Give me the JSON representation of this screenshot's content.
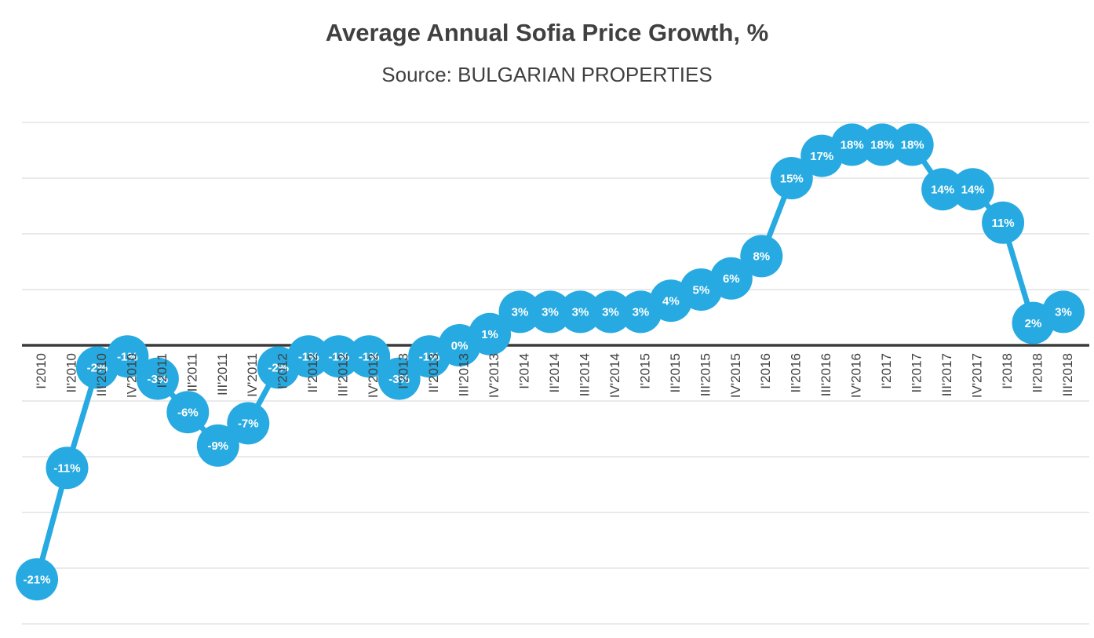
{
  "chart_data": {
    "type": "line",
    "title": "Average Annual Sofia Price Growth, %",
    "subtitle": "Source: BULGARIAN PROPERTIES",
    "categories": [
      "I'2010",
      "II'2010",
      "III'2010",
      "IV'2010",
      "I'2011",
      "II'2011",
      "III'2011",
      "IV'2011",
      "I'2012",
      "II'2012",
      "III'2012",
      "IV'2012",
      "I'2013",
      "II'2013",
      "III'2013",
      "IV'2013",
      "I'2014",
      "II'2014",
      "III'2014",
      "IV'2014",
      "I'2015",
      "II'2015",
      "III'2015",
      "IV'2015",
      "I'2016",
      "II'2016",
      "III'2016",
      "IV'2016",
      "I'2017",
      "II'2017",
      "III'2017",
      "IV'2017",
      "I'2018",
      "II'2018",
      "III'2018"
    ],
    "series": [
      {
        "name": "Average Annual Sofia Price Growth",
        "values": [
          -21,
          -11,
          -2,
          -1,
          -3,
          -6,
          -9,
          -7,
          -2,
          -1,
          -1,
          -1,
          -3,
          -1,
          0,
          1,
          3,
          3,
          3,
          3,
          3,
          4,
          5,
          6,
          8,
          15,
          17,
          18,
          18,
          18,
          14,
          14,
          11,
          2,
          3
        ],
        "labels": [
          "-21%",
          "-11%",
          "-2%",
          "-1%",
          "-3%",
          "-6%",
          "-9%",
          "-7%",
          "-2%",
          "-1%",
          "-1%",
          "-1%",
          "-3%",
          "-1%",
          "0%",
          "1%",
          "3%",
          "3%",
          "3%",
          "3%",
          "3%",
          "4%",
          "5%",
          "6%",
          "8%",
          "15%",
          "17%",
          "18%",
          "18%",
          "18%",
          "14%",
          "14%",
          "11%",
          "2%",
          "3%"
        ],
        "marker": "circle"
      }
    ],
    "xlabel": "",
    "ylabel": "",
    "ylim": [
      -25,
      20
    ],
    "grid_step": 5,
    "grid": "horizontal",
    "legend": "none",
    "line_color": "#27AAE1",
    "marker_color": "#27AAE1",
    "point_label_color": "#FFFFFF",
    "axis_color": "#3B3B3B",
    "gridline_color": "#D6D6D6",
    "tick_label_color": "#3F3F3F",
    "title_color": "#404040"
  }
}
